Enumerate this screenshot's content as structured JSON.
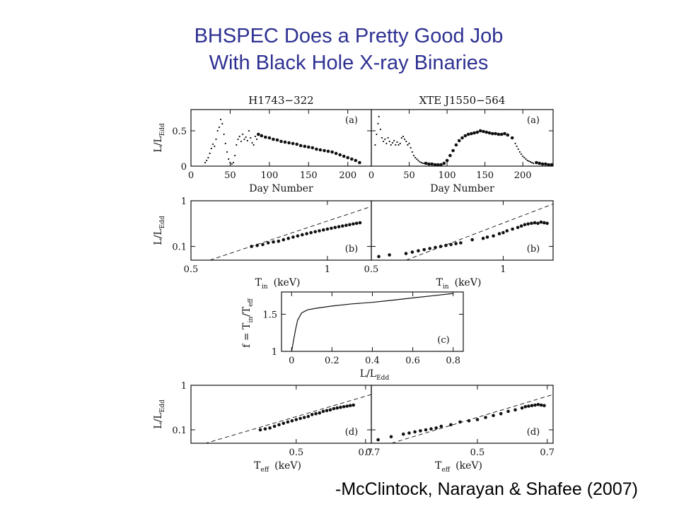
{
  "slide": {
    "title_line1": "BHSPEC Does a Pretty Good Job",
    "title_line2": "With Black Hole X-ray Binaries",
    "citation": "-McClintock, Narayan & Shafee (2007)"
  },
  "colors": {
    "title": "#2e3192",
    "ink": "#111111"
  },
  "chart_data": [
    {
      "id": "a-left",
      "type": "scatter",
      "title": "H1743−322",
      "panel_label": "(a)",
      "xlabel": "Day Number",
      "ylabel_main": "L/L",
      "ylabel_sub": "Edd",
      "xlim": [
        0,
        230
      ],
      "ylim": [
        0,
        0.8
      ],
      "xscale": "linear",
      "yscale": "linear",
      "xticks": [
        0,
        50,
        100,
        150,
        200
      ],
      "xtick_labels": [
        "0",
        "50",
        "100",
        "150",
        "200"
      ],
      "yticks": [
        0,
        0.5
      ],
      "ytick_labels": [
        "0",
        "0.5"
      ],
      "series": [
        {
          "style": "small",
          "x": [
            18,
            20,
            22,
            24,
            26,
            28,
            30,
            32,
            34,
            36,
            38,
            40,
            42,
            44,
            46,
            48,
            50,
            52,
            54,
            56,
            58,
            60,
            62,
            64,
            66,
            68,
            70,
            72,
            74,
            76,
            78,
            80,
            82,
            84
          ],
          "y": [
            0.05,
            0.08,
            0.12,
            0.18,
            0.25,
            0.31,
            0.28,
            0.38,
            0.5,
            0.55,
            0.66,
            0.6,
            0.45,
            0.32,
            0.2,
            0.1,
            0.05,
            0.03,
            0.05,
            0.15,
            0.3,
            0.38,
            0.42,
            0.35,
            0.45,
            0.38,
            0.41,
            0.36,
            0.5,
            0.4,
            0.33,
            0.3,
            0.42,
            0.38
          ]
        },
        {
          "style": "large",
          "x": [
            86,
            90,
            95,
            100,
            105,
            110,
            115,
            120,
            125,
            130,
            135,
            140,
            145,
            150,
            155,
            160,
            165,
            170,
            175,
            180,
            185,
            190,
            195,
            200,
            205,
            210,
            215
          ],
          "y": [
            0.45,
            0.43,
            0.41,
            0.4,
            0.38,
            0.37,
            0.35,
            0.34,
            0.33,
            0.32,
            0.31,
            0.29,
            0.28,
            0.27,
            0.26,
            0.24,
            0.23,
            0.22,
            0.21,
            0.2,
            0.18,
            0.16,
            0.14,
            0.12,
            0.1,
            0.08,
            0.05
          ]
        }
      ]
    },
    {
      "id": "a-right",
      "type": "scatter",
      "title": "XTE J1550−564",
      "panel_label": "(a)",
      "xlabel": "Day Number",
      "ylabel_main": "",
      "ylabel_sub": "",
      "xlim": [
        0,
        240
      ],
      "ylim": [
        0,
        0.8
      ],
      "xscale": "linear",
      "yscale": "linear",
      "xticks": [
        0,
        50,
        100,
        150,
        200
      ],
      "xtick_labels": [
        "0",
        "50",
        "100",
        "150",
        "200"
      ],
      "yticks": [
        0,
        0.5
      ],
      "ytick_labels": [
        "",
        ""
      ],
      "series": [
        {
          "style": "small",
          "x": [
            5,
            7,
            9,
            10,
            12,
            14,
            16,
            18,
            20,
            22,
            24,
            26,
            28,
            30,
            32,
            34,
            36,
            38,
            40,
            42,
            44,
            46,
            48,
            50,
            52,
            54,
            56,
            58,
            60,
            62,
            64,
            66,
            68,
            70,
            190,
            192,
            194,
            196,
            198,
            200,
            202,
            204,
            206,
            208,
            210,
            212,
            214
          ],
          "y": [
            0.3,
            0.45,
            0.6,
            0.7,
            0.52,
            0.4,
            0.35,
            0.38,
            0.32,
            0.4,
            0.35,
            0.3,
            0.33,
            0.36,
            0.3,
            0.34,
            0.3,
            0.32,
            0.4,
            0.42,
            0.38,
            0.35,
            0.3,
            0.32,
            0.26,
            0.2,
            0.15,
            0.12,
            0.1,
            0.08,
            0.06,
            0.05,
            0.04,
            0.04,
            0.32,
            0.28,
            0.24,
            0.2,
            0.17,
            0.14,
            0.12,
            0.1,
            0.08,
            0.07,
            0.06,
            0.05,
            0.04
          ]
        },
        {
          "style": "large",
          "x": [
            72,
            76,
            80,
            84,
            88,
            92,
            96,
            100,
            104,
            108,
            112,
            116,
            120,
            124,
            128,
            132,
            136,
            140,
            144,
            148,
            152,
            156,
            160,
            164,
            168,
            172,
            176,
            180,
            186,
            218,
            222,
            226,
            230,
            234,
            238
          ],
          "y": [
            0.04,
            0.03,
            0.03,
            0.02,
            0.02,
            0.02,
            0.04,
            0.08,
            0.15,
            0.22,
            0.3,
            0.36,
            0.4,
            0.43,
            0.45,
            0.46,
            0.47,
            0.48,
            0.5,
            0.49,
            0.48,
            0.47,
            0.46,
            0.46,
            0.45,
            0.45,
            0.46,
            0.44,
            0.4,
            0.05,
            0.04,
            0.03,
            0.03,
            0.02,
            0.02
          ]
        }
      ]
    },
    {
      "id": "b-left",
      "type": "scatter",
      "panel_label": "(b)",
      "xlabel_main": "T",
      "xlabel_sub": "in",
      "xlabel_unit": "(keV)",
      "ylabel_main": "L/L",
      "ylabel_sub": "Edd",
      "xlim": [
        0.5,
        1.25
      ],
      "ylim": [
        0.05,
        1
      ],
      "xscale": "log",
      "yscale": "log",
      "xticks": [
        0.5,
        1
      ],
      "xtick_labels": [
        "0.5",
        "1"
      ],
      "yticks": [
        0.1,
        1
      ],
      "ytick_labels": [
        "0.1",
        "1"
      ],
      "dashed_line": [
        [
          0.55,
          0.05
        ],
        [
          1.25,
          0.75
        ]
      ],
      "series": [
        {
          "style": "large",
          "x": [
            0.68,
            0.7,
            0.72,
            0.74,
            0.76,
            0.78,
            0.8,
            0.82,
            0.84,
            0.86,
            0.88,
            0.9,
            0.92,
            0.94,
            0.96,
            0.98,
            1.0,
            1.02,
            1.04,
            1.06,
            1.08,
            1.1,
            1.12,
            1.14,
            1.16,
            1.18
          ],
          "y": [
            0.1,
            0.105,
            0.11,
            0.12,
            0.125,
            0.13,
            0.14,
            0.15,
            0.16,
            0.17,
            0.18,
            0.19,
            0.2,
            0.21,
            0.22,
            0.23,
            0.24,
            0.25,
            0.26,
            0.27,
            0.28,
            0.29,
            0.3,
            0.31,
            0.32,
            0.33
          ]
        }
      ]
    },
    {
      "id": "b-right",
      "type": "scatter",
      "panel_label": "(b)",
      "xlabel_main": "T",
      "xlabel_sub": "in",
      "xlabel_unit": "(keV)",
      "ylabel_main": "",
      "ylabel_sub": "",
      "xlim": [
        0.5,
        1.3
      ],
      "ylim": [
        0.05,
        1
      ],
      "xscale": "log",
      "yscale": "log",
      "xticks": [
        0.5,
        1
      ],
      "xtick_labels": [
        "0.5",
        "1"
      ],
      "yticks": [
        0.1,
        1
      ],
      "ytick_labels": [
        "",
        ""
      ],
      "dashed_line": [
        [
          0.6,
          0.05
        ],
        [
          1.3,
          0.85
        ]
      ],
      "series": [
        {
          "style": "large",
          "x": [
            0.52,
            0.55,
            0.6,
            0.62,
            0.64,
            0.66,
            0.68,
            0.7,
            0.72,
            0.74,
            0.76,
            0.78,
            0.8,
            0.85,
            0.9,
            0.92,
            0.95,
            0.98,
            1.0,
            1.02,
            1.05,
            1.08,
            1.1,
            1.12,
            1.14,
            1.16,
            1.18,
            1.2,
            1.22,
            1.24,
            1.26
          ],
          "y": [
            0.06,
            0.065,
            0.07,
            0.075,
            0.08,
            0.085,
            0.09,
            0.095,
            0.1,
            0.105,
            0.11,
            0.115,
            0.12,
            0.14,
            0.15,
            0.16,
            0.17,
            0.19,
            0.2,
            0.22,
            0.24,
            0.26,
            0.28,
            0.3,
            0.31,
            0.32,
            0.33,
            0.32,
            0.34,
            0.33,
            0.32
          ]
        }
      ]
    },
    {
      "id": "c",
      "type": "line",
      "panel_label": "(c)",
      "xlabel_main": "L/L",
      "xlabel_sub": "Edd",
      "ylabel": "f = T in/T eff",
      "ylabel_parts": {
        "prefix": "f = T",
        "sub1": "in",
        "mid": "/T",
        "sub2": "eff"
      },
      "xlim": [
        -0.05,
        0.85
      ],
      "ylim": [
        1,
        1.8
      ],
      "xscale": "linear",
      "yscale": "linear",
      "xticks": [
        0,
        0.2,
        0.4,
        0.6,
        0.8
      ],
      "xtick_labels": [
        "0",
        "0.2",
        "0.4",
        "0.6",
        "0.8"
      ],
      "yticks": [
        1,
        1.5
      ],
      "ytick_labels": [
        "1",
        "1.5"
      ],
      "series": [
        {
          "x": [
            0.0,
            0.01,
            0.02,
            0.03,
            0.05,
            0.08,
            0.12,
            0.2,
            0.3,
            0.4,
            0.5,
            0.6,
            0.7,
            0.8
          ],
          "y": [
            1.0,
            1.15,
            1.3,
            1.42,
            1.52,
            1.56,
            1.58,
            1.61,
            1.64,
            1.66,
            1.69,
            1.72,
            1.75,
            1.78
          ]
        }
      ]
    },
    {
      "id": "d-left",
      "type": "scatter",
      "panel_label": "(d)",
      "xlabel_main": "T",
      "xlabel_sub": "eff",
      "xlabel_unit": "(keV)",
      "ylabel_main": "L/L",
      "ylabel_sub": "Edd",
      "xlim": [
        0.3,
        0.72
      ],
      "ylim": [
        0.05,
        1
      ],
      "xscale": "log",
      "yscale": "log",
      "xticks": [
        0.5,
        0.7
      ],
      "xtick_labels": [
        "0.5",
        "0.7"
      ],
      "yticks": [
        0.1,
        1
      ],
      "ytick_labels": [
        "0.1",
        "1"
      ],
      "dashed_line": [
        [
          0.3,
          0.04
        ],
        [
          0.72,
          0.62
        ]
      ],
      "series": [
        {
          "style": "large",
          "x": [
            0.42,
            0.43,
            0.44,
            0.45,
            0.46,
            0.47,
            0.48,
            0.49,
            0.5,
            0.51,
            0.52,
            0.53,
            0.54,
            0.55,
            0.56,
            0.57,
            0.58,
            0.59,
            0.6,
            0.61,
            0.62,
            0.63,
            0.64,
            0.65,
            0.66
          ],
          "y": [
            0.1,
            0.105,
            0.11,
            0.12,
            0.13,
            0.14,
            0.15,
            0.16,
            0.17,
            0.18,
            0.19,
            0.2,
            0.22,
            0.23,
            0.24,
            0.26,
            0.27,
            0.28,
            0.3,
            0.31,
            0.32,
            0.33,
            0.34,
            0.35,
            0.36
          ]
        }
      ]
    },
    {
      "id": "d-right",
      "type": "scatter",
      "panel_label": "(d)",
      "xlabel_main": "T",
      "xlabel_sub": "eff",
      "xlabel_unit": "(keV)",
      "ylabel_main": "",
      "ylabel_sub": "",
      "xlim": [
        0.3,
        0.72
      ],
      "ylim": [
        0.05,
        1
      ],
      "xscale": "log",
      "yscale": "log",
      "xticks": [
        0.5,
        0.7
      ],
      "xtick_labels": [
        "0.5",
        "0.7"
      ],
      "yticks": [
        0.1,
        1
      ],
      "ytick_labels": [
        "",
        ""
      ],
      "left_tick_label": "0.7",
      "dashed_line": [
        [
          0.32,
          0.045
        ],
        [
          0.72,
          0.62
        ]
      ],
      "series": [
        {
          "style": "large",
          "x": [
            0.31,
            0.33,
            0.35,
            0.36,
            0.37,
            0.38,
            0.39,
            0.4,
            0.41,
            0.42,
            0.44,
            0.46,
            0.48,
            0.5,
            0.52,
            0.54,
            0.56,
            0.58,
            0.6,
            0.62,
            0.63,
            0.64,
            0.65,
            0.66,
            0.67,
            0.68,
            0.69
          ],
          "y": [
            0.06,
            0.07,
            0.08,
            0.085,
            0.09,
            0.095,
            0.1,
            0.105,
            0.11,
            0.12,
            0.13,
            0.15,
            0.16,
            0.17,
            0.19,
            0.21,
            0.23,
            0.26,
            0.28,
            0.31,
            0.33,
            0.34,
            0.35,
            0.36,
            0.37,
            0.36,
            0.35
          ]
        }
      ]
    }
  ]
}
